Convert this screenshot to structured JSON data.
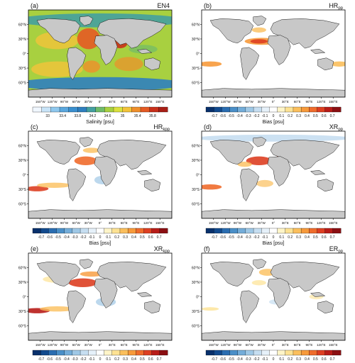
{
  "axis_labels": {
    "lat": [
      "60°N",
      "30°N",
      "0°",
      "30°S",
      "60°S"
    ],
    "lon": [
      "150°W",
      "120°W",
      "90°W",
      "60°W",
      "30°W",
      "0°",
      "30°E",
      "60°E",
      "90°E",
      "120°E",
      "150°E"
    ]
  },
  "colorbars": {
    "salinity": {
      "label": "Salinity [psu]",
      "ticks": [
        "33",
        "33.4",
        "33.8",
        "34.2",
        "34.6",
        "35",
        "35.4",
        "35.8"
      ],
      "colors": [
        "#f0f7ff",
        "#c8e4f8",
        "#8fc8ee",
        "#5aa7de",
        "#3a8fcf",
        "#2f7fbf",
        "#44a0a0",
        "#70bb6a",
        "#a8d040",
        "#dbe13e",
        "#f3c33a",
        "#ef8f2a",
        "#e45a24",
        "#c8301a",
        "#a81f16"
      ]
    },
    "bias": {
      "label": "Bias [psu]",
      "ticks": [
        "-0.7",
        "-0.6",
        "-0.5",
        "-0.4",
        "-0.3",
        "-0.2",
        "-0.1",
        "0",
        "0.1",
        "0.2",
        "0.3",
        "0.4",
        "0.5",
        "0.6",
        "0.7"
      ],
      "colors": [
        "#08306b",
        "#124a8e",
        "#2a6db1",
        "#4a8fc8",
        "#74add9",
        "#9fc8e6",
        "#c6def1",
        "#e6f1fa",
        "#ffffff",
        "#fff5c8",
        "#fde293",
        "#fbbf5c",
        "#f79a3b",
        "#ef6c2c",
        "#dd3f22",
        "#b81c18",
        "#8a0f12"
      ]
    }
  },
  "panels": [
    {
      "tag": "(a)",
      "title": "EN4",
      "sub": "",
      "cbar": "salinity"
    },
    {
      "tag": "(b)",
      "title": "HR",
      "sub": "pp",
      "cbar": "bias"
    },
    {
      "tag": "(c)",
      "title": "HR",
      "sub": "kpp",
      "cbar": "bias"
    },
    {
      "tag": "(d)",
      "title": "XR",
      "sub": "pp",
      "cbar": "bias"
    },
    {
      "tag": "(e)",
      "title": "XR",
      "sub": "kpp",
      "cbar": "bias"
    },
    {
      "tag": "(f)",
      "title": "ER",
      "sub": "pp",
      "cbar": "bias"
    }
  ],
  "map_colors": {
    "land": "#c8c8c8",
    "coast": "#1a1a1a"
  }
}
